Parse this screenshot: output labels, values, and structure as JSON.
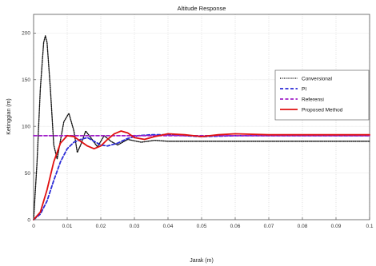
{
  "chart_data": {
    "type": "line",
    "title": "Altitude Response",
    "xlabel": "Jarak (m)",
    "ylabel": "Ketinggian (m)",
    "xlim": [
      0,
      0.1
    ],
    "ylim": [
      0,
      220
    ],
    "xticks": [
      0,
      0.01,
      0.02,
      0.03,
      0.04,
      0.05,
      0.06,
      0.07,
      0.08,
      0.09,
      0.1
    ],
    "xtick_labels": [
      "0",
      "0.01",
      "0.02",
      "0.03",
      "0.04",
      "0.05",
      "0.06",
      "0.07",
      "0.08",
      "0.09",
      "0.1"
    ],
    "yticks": [
      0,
      50,
      100,
      150,
      200
    ],
    "ytick_labels": [
      "0",
      "50",
      "100",
      "150",
      "200"
    ],
    "grid": true,
    "legend_position": "right",
    "series": [
      {
        "name": "Conversional",
        "color": "#111111",
        "style": "dotted",
        "x": [
          0,
          0.001,
          0.002,
          0.003,
          0.0035,
          0.004,
          0.005,
          0.006,
          0.007,
          0.008,
          0.009,
          0.0105,
          0.012,
          0.013,
          0.014,
          0.0155,
          0.017,
          0.019,
          0.021,
          0.023,
          0.025,
          0.028,
          0.032,
          0.036,
          0.04,
          0.05,
          0.06,
          0.07,
          0.08,
          0.09,
          0.1
        ],
        "y": [
          0,
          60,
          140,
          190,
          197,
          190,
          140,
          80,
          65,
          85,
          105,
          114,
          95,
          72,
          80,
          95,
          88,
          78,
          90,
          84,
          80,
          86,
          83,
          85,
          84,
          84,
          84,
          84,
          84,
          84,
          84
        ]
      },
      {
        "name": "PI",
        "color": "#2b2bd6",
        "style": "dashed",
        "x": [
          0,
          0.002,
          0.004,
          0.006,
          0.008,
          0.01,
          0.012,
          0.014,
          0.016,
          0.018,
          0.02,
          0.022,
          0.025,
          0.028,
          0.031,
          0.035,
          0.04,
          0.045,
          0.05,
          0.06,
          0.07,
          0.08,
          0.09,
          0.1
        ],
        "y": [
          0,
          6,
          20,
          42,
          62,
          76,
          83,
          86,
          88,
          84,
          80,
          79,
          82,
          87,
          90,
          91,
          91,
          90,
          89,
          90,
          90,
          90,
          90,
          90
        ]
      },
      {
        "name": "Referensi",
        "color": "#a020c8",
        "style": "dashed",
        "x": [
          0,
          0.1
        ],
        "y": [
          90,
          90
        ]
      },
      {
        "name": "Proposed Method",
        "color": "#e01010",
        "style": "solid",
        "x": [
          0,
          0.002,
          0.004,
          0.006,
          0.008,
          0.01,
          0.012,
          0.014,
          0.016,
          0.018,
          0.02,
          0.022,
          0.024,
          0.026,
          0.028,
          0.03,
          0.033,
          0.036,
          0.04,
          0.045,
          0.05,
          0.055,
          0.06,
          0.07,
          0.08,
          0.09,
          0.1
        ],
        "y": [
          0,
          8,
          32,
          62,
          82,
          90,
          89,
          84,
          79,
          76,
          79,
          86,
          92,
          95,
          93,
          88,
          86,
          89,
          92,
          91,
          89,
          91,
          92,
          91,
          91,
          91,
          91
        ]
      }
    ]
  }
}
